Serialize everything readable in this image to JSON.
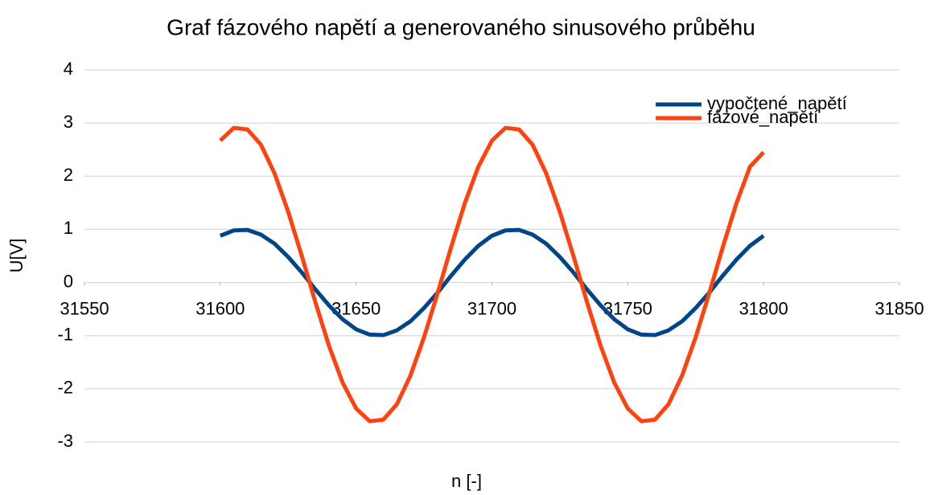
{
  "chart_data": {
    "type": "line",
    "title": "Graf fázového napětí a generovaného sinusového průběhu",
    "xlabel": "n [-]",
    "ylabel": "U[V]",
    "x": [
      31600,
      31605,
      31610,
      31615,
      31620,
      31625,
      31630,
      31635,
      31640,
      31645,
      31650,
      31655,
      31660,
      31665,
      31670,
      31675,
      31680,
      31685,
      31690,
      31695,
      31700,
      31705,
      31710,
      31715,
      31720,
      31725,
      31730,
      31735,
      31740,
      31745,
      31750,
      31755,
      31760,
      31765,
      31770,
      31775,
      31780,
      31785,
      31790,
      31795,
      31800
    ],
    "series": [
      {
        "name": "vypočtené_napětí",
        "color": "#004586",
        "values": [
          0.88,
          0.98,
          0.99,
          0.9,
          0.73,
          0.48,
          0.19,
          -0.13,
          -0.43,
          -0.69,
          -0.88,
          -0.98,
          -0.99,
          -0.9,
          -0.73,
          -0.48,
          -0.19,
          0.13,
          0.43,
          0.69,
          0.88,
          0.98,
          0.99,
          0.9,
          0.73,
          0.48,
          0.19,
          -0.13,
          -0.43,
          -0.69,
          -0.88,
          -0.98,
          -0.99,
          -0.9,
          -0.73,
          -0.48,
          -0.19,
          0.13,
          0.43,
          0.69,
          0.88
        ]
      },
      {
        "name": "fázové_napětí",
        "color": "#ff420e",
        "values": [
          2.67,
          2.91,
          2.88,
          2.59,
          2.05,
          1.33,
          0.5,
          -0.37,
          -1.19,
          -1.88,
          -2.37,
          -2.61,
          -2.58,
          -2.29,
          -1.75,
          -1.03,
          -0.2,
          0.67,
          1.49,
          2.18,
          2.67,
          2.91,
          2.88,
          2.59,
          2.05,
          1.33,
          0.5,
          -0.37,
          -1.19,
          -1.88,
          -2.37,
          -2.61,
          -2.58,
          -2.29,
          -1.75,
          -1.03,
          -0.2,
          0.67,
          1.49,
          2.18,
          2.45
        ]
      }
    ],
    "xlim": [
      31550,
      31850
    ],
    "xticks": [
      31550,
      31600,
      31650,
      31700,
      31750,
      31800,
      31850
    ],
    "ylim": [
      -3,
      4
    ],
    "yticks": [
      -3,
      -2,
      -1,
      0,
      1,
      2,
      3,
      4
    ],
    "grid": true,
    "legend": "top-right"
  }
}
